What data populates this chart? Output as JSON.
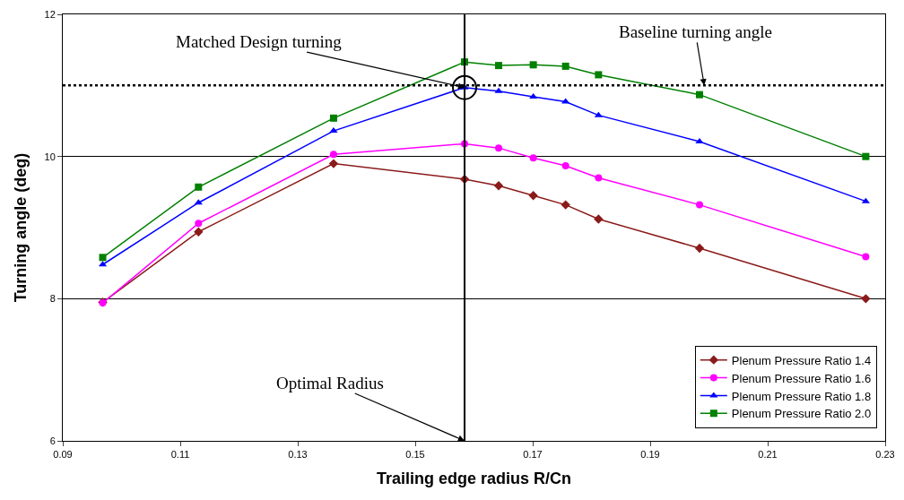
{
  "chart_data": {
    "type": "line",
    "xlabel": "Trailing edge radius R/Cn",
    "ylabel": "Turning angle (deg)",
    "x": [
      0.0968,
      0.1131,
      0.1361,
      0.1584,
      0.1642,
      0.1701,
      0.1756,
      0.1812,
      0.1984,
      0.2267
    ],
    "series": [
      {
        "name": "Plenum Pressure Ratio 1.4",
        "color": "#8b1a1a",
        "marker": "diamond",
        "values": [
          7.95,
          8.94,
          9.9,
          9.68,
          9.59,
          9.45,
          9.32,
          9.12,
          8.71,
          8.0
        ]
      },
      {
        "name": "Plenum Pressure Ratio 1.6",
        "color": "#ff00ff",
        "marker": "circle",
        "values": [
          7.94,
          9.06,
          10.03,
          10.18,
          10.12,
          9.98,
          9.87,
          9.7,
          9.32,
          8.59
        ]
      },
      {
        "name": "Plenum Pressure Ratio 1.8",
        "color": "#0000ff",
        "marker": "triangle",
        "values": [
          8.48,
          9.35,
          10.36,
          10.97,
          10.92,
          10.84,
          10.77,
          10.58,
          10.21,
          9.37
        ]
      },
      {
        "name": "Plenum Pressure Ratio 2.0",
        "color": "#008000",
        "marker": "square",
        "values": [
          8.58,
          9.57,
          10.54,
          11.33,
          11.28,
          11.29,
          11.27,
          11.15,
          10.87,
          10.0
        ]
      }
    ],
    "xlim": [
      0.09,
      0.23
    ],
    "xticks": [
      0.09,
      0.11,
      0.13,
      0.15,
      0.17,
      0.19,
      0.21,
      0.23
    ],
    "ylim": [
      6,
      12
    ],
    "yticks": [
      6,
      8,
      10,
      12
    ],
    "grid": "y",
    "legend": "bottom right",
    "ref_lines": [
      {
        "axis": "y",
        "value": 11.0,
        "color": "#000000",
        "line_style": "dotted",
        "label": "Baseline turning angle"
      },
      {
        "axis": "x",
        "value": 0.1584,
        "color": "#000000",
        "line_style": "solid",
        "label": "Optimal Radius"
      }
    ],
    "annotations": [
      {
        "text": "Matched Design turning",
        "x": 0.1584,
        "y": 10.97
      }
    ]
  }
}
